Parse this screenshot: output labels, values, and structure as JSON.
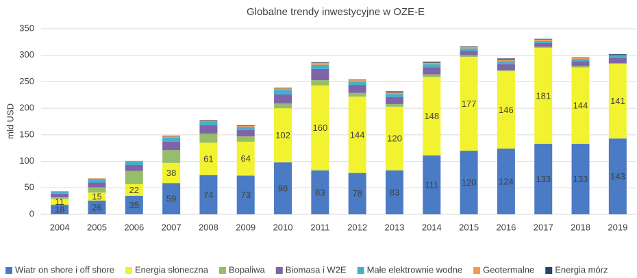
{
  "chart_data": {
    "type": "stacked_bar",
    "title": "Globalne trendy inwestycyjne w OZE-E",
    "y_label": "mld USD",
    "categories": [
      "2004",
      "2005",
      "2006",
      "2007",
      "2008",
      "2009",
      "2010",
      "2011",
      "2012",
      "2013",
      "2014",
      "2015",
      "2016",
      "2017",
      "2018",
      "2019"
    ],
    "ylim": [
      0,
      350
    ],
    "yticks": [
      0,
      50,
      100,
      150,
      200,
      250,
      300,
      350
    ],
    "grid": true,
    "legend": "bottom",
    "series": [
      {
        "name": "Wiatr on shore i off shore",
        "color": "#4a7bc4",
        "labels": true,
        "values": [
          18,
          26,
          35,
          59,
          74,
          73,
          98,
          83,
          78,
          83,
          111,
          120,
          124,
          133,
          133,
          143
        ]
      },
      {
        "name": "Energia słoneczna",
        "color": "#f2f230",
        "labels": true,
        "values": [
          11,
          15,
          22,
          38,
          61,
          64,
          102,
          160,
          144,
          120,
          148,
          177,
          146,
          181,
          144,
          141
        ]
      },
      {
        "name": "Bopaliwa",
        "color": "#96be6a",
        "values": [
          3,
          10,
          25,
          24,
          17,
          10,
          9,
          10,
          7,
          5,
          5,
          3,
          2,
          2,
          3,
          1
        ]
      },
      {
        "name": "Biomasa i W2E",
        "color": "#8064a8",
        "values": [
          7,
          9,
          11,
          16,
          16,
          12,
          17,
          21,
          15,
          13,
          13,
          8,
          11,
          7,
          9,
          10
        ]
      },
      {
        "name": "Małe elektrownie wodne",
        "color": "#45b0cc",
        "values": [
          4,
          7,
          7,
          8,
          7,
          6,
          9,
          8,
          6,
          6,
          6,
          5,
          6,
          4,
          4,
          4
        ]
      },
      {
        "name": "Geotermalne",
        "color": "#f29a55",
        "values": [
          1,
          1,
          1,
          2,
          2,
          2,
          3,
          4,
          3,
          3,
          3,
          3,
          3,
          3,
          2,
          1
        ]
      },
      {
        "name": "Energia mórz",
        "color": "#23476e",
        "values": [
          0,
          0,
          0,
          1,
          1,
          1,
          1,
          1,
          1,
          2,
          2,
          1,
          2,
          1,
          1,
          2
        ]
      }
    ]
  }
}
